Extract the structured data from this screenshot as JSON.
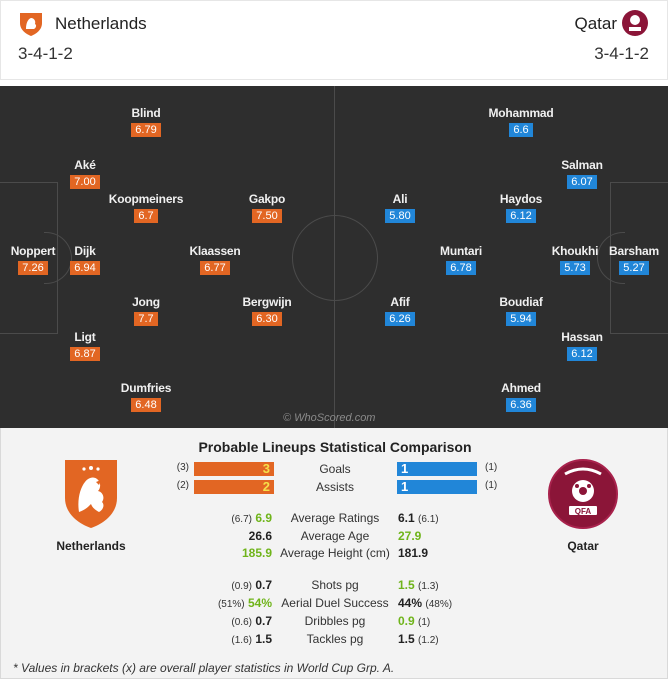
{
  "header": {
    "home": {
      "name": "Netherlands",
      "formation": "3-4-1-2"
    },
    "away": {
      "name": "Qatar",
      "formation": "3-4-1-2"
    }
  },
  "pitch": {
    "home_players": [
      {
        "name": "Noppert",
        "rating": "7.26"
      },
      {
        "name": "Aké",
        "rating": "7.00"
      },
      {
        "name": "Dijk",
        "rating": "6.94"
      },
      {
        "name": "Ligt",
        "rating": "6.87"
      },
      {
        "name": "Blind",
        "rating": "6.79"
      },
      {
        "name": "Koopmeiners",
        "rating": "6.7"
      },
      {
        "name": "Jong",
        "rating": "7.7"
      },
      {
        "name": "Dumfries",
        "rating": "6.48"
      },
      {
        "name": "Klaassen",
        "rating": "6.77"
      },
      {
        "name": "Gakpo",
        "rating": "7.50"
      },
      {
        "name": "Bergwijn",
        "rating": "6.30"
      }
    ],
    "away_players": [
      {
        "name": "Mohammad",
        "rating": "6.6"
      },
      {
        "name": "Salman",
        "rating": "6.07"
      },
      {
        "name": "Haydos",
        "rating": "6.12"
      },
      {
        "name": "Ali",
        "rating": "5.80"
      },
      {
        "name": "Muntari",
        "rating": "6.78"
      },
      {
        "name": "Khoukhi",
        "rating": "5.73"
      },
      {
        "name": "Barsham",
        "rating": "5.27"
      },
      {
        "name": "Afif",
        "rating": "6.26"
      },
      {
        "name": "Boudiaf",
        "rating": "5.94"
      },
      {
        "name": "Hassan",
        "rating": "6.12"
      },
      {
        "name": "Ahmed",
        "rating": "6.36"
      }
    ],
    "watermark": "© WhoScored.com"
  },
  "comparison": {
    "title": "Probable Lineups Statistical Comparison",
    "home_team": "Netherlands",
    "away_team": "Qatar",
    "bars": [
      {
        "label": "Goals",
        "home_prev": "(3)",
        "home": "3",
        "away": "1",
        "away_prev": "(1)"
      },
      {
        "label": "Assists",
        "home_prev": "(2)",
        "home": "2",
        "away": "1",
        "away_prev": "(1)"
      }
    ],
    "stats": [
      {
        "label": "Average Ratings",
        "home_prev": "(6.7)",
        "home": "6.9",
        "away": "6.1",
        "away_prev": "(6.1)"
      },
      {
        "label": "Average Age",
        "home_prev": "",
        "home": "26.6",
        "away": "27.9",
        "away_prev": ""
      },
      {
        "label": "Average Height (cm)",
        "home_prev": "",
        "home": "185.9",
        "away": "181.9",
        "away_prev": ""
      },
      {
        "label": "Shots pg",
        "home_prev": "(0.9)",
        "home": "0.7",
        "away": "1.5",
        "away_prev": "(1.3)"
      },
      {
        "label": "Aerial Duel Success",
        "home_prev": "(51%)",
        "home": "54%",
        "away": "44%",
        "away_prev": "(48%)"
      },
      {
        "label": "Dribbles pg",
        "home_prev": "(0.6)",
        "home": "0.7",
        "away": "0.9",
        "away_prev": "(1)"
      },
      {
        "label": "Tackles pg",
        "home_prev": "(1.6)",
        "home": "1.5",
        "away": "1.5",
        "away_prev": "(1.2)"
      }
    ],
    "footnote": "* Values in brackets (x) are overall player statistics in World Cup Grp. A."
  },
  "colors": {
    "home": "#e26623",
    "away": "#2186d8",
    "better": "#6fb41a",
    "pitch": "#2e2e2e"
  },
  "icons": {
    "home_crest": "knvb-lion-crest-icon",
    "away_crest": "qfa-crest-icon"
  }
}
